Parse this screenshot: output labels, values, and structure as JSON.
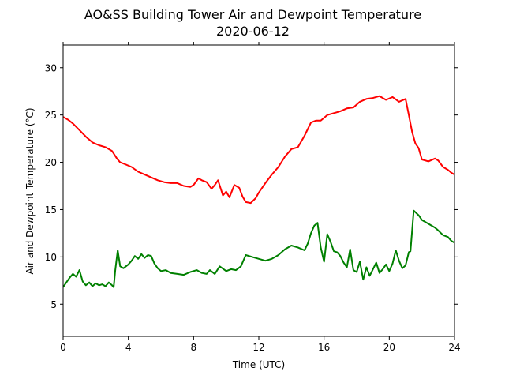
{
  "chart_data": {
    "type": "line",
    "title": "AO&SS Building Tower Air and Dewpoint Temperature",
    "subtitle": "2020-06-12",
    "xlabel": "Time (UTC)",
    "ylabel": "Air and Dewpoint Temperature (°C)",
    "xlim": [
      0,
      24
    ],
    "ylim": [
      1.6,
      32.4
    ],
    "x_ticks": [
      0,
      4,
      8,
      12,
      16,
      20,
      24
    ],
    "y_ticks": [
      5,
      10,
      15,
      20,
      25,
      30
    ],
    "grid": false,
    "legend": "none",
    "series": [
      {
        "color": "#ff0000",
        "x": [
          0,
          0.3,
          0.6,
          1.0,
          1.4,
          1.8,
          2.2,
          2.6,
          3.0,
          3.3,
          3.5,
          3.8,
          4.2,
          4.6,
          5.0,
          5.4,
          5.8,
          6.2,
          6.6,
          7.0,
          7.4,
          7.8,
          8.0,
          8.3,
          8.5,
          8.8,
          9.1,
          9.3,
          9.5,
          9.8,
          10.0,
          10.2,
          10.5,
          10.8,
          11.0,
          11.2,
          11.5,
          11.8,
          12.0,
          12.4,
          12.8,
          13.2,
          13.6,
          14.0,
          14.4,
          14.8,
          15.2,
          15.5,
          15.8,
          16.2,
          16.6,
          17.0,
          17.4,
          17.8,
          18.2,
          18.6,
          19.0,
          19.4,
          19.8,
          20.2,
          20.6,
          21.0,
          21.2,
          21.4,
          21.6,
          21.8,
          22.0,
          22.4,
          22.8,
          23.0,
          23.3,
          23.6,
          23.8,
          24.0
        ],
        "values": [
          24.8,
          24.5,
          24.1,
          23.4,
          22.7,
          22.1,
          21.8,
          21.6,
          21.2,
          20.4,
          20.0,
          19.8,
          19.5,
          19.0,
          18.7,
          18.4,
          18.1,
          17.9,
          17.8,
          17.8,
          17.5,
          17.4,
          17.6,
          18.3,
          18.1,
          17.9,
          17.2,
          17.6,
          18.1,
          16.5,
          16.9,
          16.3,
          17.6,
          17.3,
          16.4,
          15.8,
          15.7,
          16.2,
          16.8,
          17.8,
          18.7,
          19.5,
          20.6,
          21.4,
          21.6,
          22.8,
          24.2,
          24.4,
          24.4,
          25.0,
          25.2,
          25.4,
          25.7,
          25.8,
          26.4,
          26.7,
          26.8,
          27.0,
          26.6,
          26.9,
          26.4,
          26.7,
          25.0,
          23.2,
          22.0,
          21.5,
          20.3,
          20.1,
          20.4,
          20.2,
          19.5,
          19.2,
          18.9,
          18.7
        ]
      },
      {
        "color": "#008000",
        "x": [
          0,
          0.2,
          0.4,
          0.6,
          0.8,
          1.0,
          1.2,
          1.4,
          1.6,
          1.8,
          2.0,
          2.2,
          2.4,
          2.6,
          2.8,
          3.0,
          3.1,
          3.2,
          3.35,
          3.5,
          3.7,
          4.0,
          4.2,
          4.4,
          4.6,
          4.8,
          5.0,
          5.2,
          5.4,
          5.6,
          5.8,
          6.0,
          6.3,
          6.6,
          7.0,
          7.4,
          7.8,
          8.2,
          8.5,
          8.8,
          9.0,
          9.3,
          9.6,
          10.0,
          10.3,
          10.6,
          10.9,
          11.2,
          11.6,
          12.0,
          12.4,
          12.8,
          13.2,
          13.6,
          14.0,
          14.4,
          14.8,
          15.0,
          15.2,
          15.4,
          15.6,
          15.8,
          16.0,
          16.2,
          16.4,
          16.6,
          16.8,
          17.0,
          17.2,
          17.4,
          17.6,
          17.8,
          18.0,
          18.2,
          18.4,
          18.6,
          18.8,
          19.0,
          19.2,
          19.4,
          19.6,
          19.8,
          20.0,
          20.2,
          20.4,
          20.6,
          20.8,
          21.0,
          21.2,
          21.3,
          21.5,
          21.8,
          22.0,
          22.4,
          22.8,
          23.0,
          23.3,
          23.6,
          23.8,
          24.0
        ],
        "values": [
          6.8,
          7.3,
          7.8,
          8.2,
          7.9,
          8.6,
          7.4,
          7.0,
          7.3,
          6.9,
          7.2,
          7.0,
          7.1,
          6.9,
          7.3,
          7.0,
          6.8,
          8.6,
          10.7,
          9.0,
          8.8,
          9.2,
          9.6,
          10.1,
          9.8,
          10.3,
          9.9,
          10.2,
          10.1,
          9.3,
          8.8,
          8.5,
          8.6,
          8.3,
          8.2,
          8.1,
          8.4,
          8.6,
          8.3,
          8.2,
          8.6,
          8.2,
          9.0,
          8.5,
          8.7,
          8.6,
          9.0,
          10.2,
          10.0,
          9.8,
          9.6,
          9.8,
          10.2,
          10.8,
          11.2,
          11.0,
          10.7,
          11.4,
          12.5,
          13.3,
          13.6,
          11.0,
          9.5,
          12.4,
          11.6,
          10.6,
          10.5,
          10.1,
          9.4,
          8.9,
          10.8,
          8.6,
          8.4,
          9.5,
          7.6,
          8.9,
          8.0,
          8.7,
          9.4,
          8.3,
          8.7,
          9.2,
          8.5,
          9.3,
          10.7,
          9.6,
          8.8,
          9.1,
          10.5,
          10.6,
          14.9,
          14.4,
          13.9,
          13.5,
          13.1,
          12.8,
          12.3,
          12.1,
          11.7,
          11.5
        ]
      }
    ]
  }
}
